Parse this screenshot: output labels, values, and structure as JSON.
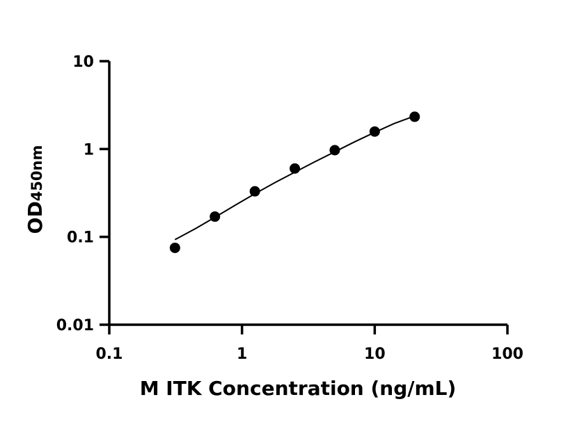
{
  "chart_data": {
    "type": "scatter",
    "title": "",
    "xlabel": "M ITK Concentration (ng/mL)",
    "ylabel_main": "OD",
    "ylabel_sub": "450nm",
    "x_scale": "log",
    "y_scale": "log",
    "xlim": [
      0.1,
      100
    ],
    "ylim": [
      0.01,
      10
    ],
    "x_ticks": [
      "0.1",
      "1",
      "10",
      "100"
    ],
    "y_ticks": [
      "0.01",
      "0.1",
      "1",
      "10"
    ],
    "grid": false,
    "legend": "none",
    "series": [
      {
        "x": [
          0.3125,
          0.625,
          1.25,
          2.5,
          5,
          10,
          20
        ],
        "y": [
          0.075,
          0.17,
          0.33,
          0.6,
          0.97,
          1.58,
          2.33
        ]
      }
    ],
    "fit_curve": {
      "x": [
        0.3125,
        0.45,
        0.625,
        0.9,
        1.25,
        1.8,
        2.5,
        3.5,
        5,
        7,
        10,
        14,
        20
      ],
      "y": [
        0.093,
        0.125,
        0.167,
        0.232,
        0.31,
        0.42,
        0.545,
        0.71,
        0.93,
        1.2,
        1.55,
        1.95,
        2.38
      ]
    },
    "colors": {
      "points": "#000000",
      "line": "#000000",
      "axes": "#000000"
    }
  }
}
